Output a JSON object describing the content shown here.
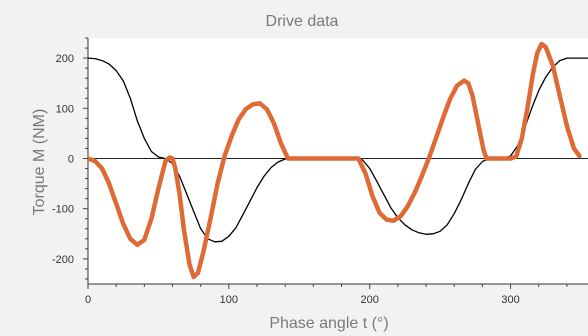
{
  "chart_data": {
    "type": "line",
    "title": "Drive data",
    "xlabel": "Phase angle t (°)",
    "ylabel": "Torque M (NM)",
    "xlim": [
      0,
      355
    ],
    "ylim": [
      -250,
      240
    ],
    "x_ticks": [
      0,
      100,
      200,
      300
    ],
    "y_ticks": [
      200,
      100,
      0,
      -100,
      -200
    ],
    "grid": false,
    "legend": "none",
    "zero_line": true,
    "series": [
      {
        "color": "#000000",
        "line_width": "thin",
        "points": [
          [
            0,
            200
          ],
          [
            5,
            199
          ],
          [
            10,
            195
          ],
          [
            15,
            188
          ],
          [
            20,
            175
          ],
          [
            25,
            155
          ],
          [
            30,
            120
          ],
          [
            35,
            75
          ],
          [
            40,
            40
          ],
          [
            45,
            14
          ],
          [
            50,
            3
          ],
          [
            55,
            0
          ],
          [
            60,
            -10
          ],
          [
            65,
            -35
          ],
          [
            70,
            -70
          ],
          [
            75,
            -105
          ],
          [
            80,
            -140
          ],
          [
            85,
            -160
          ],
          [
            90,
            -166
          ],
          [
            95,
            -165
          ],
          [
            100,
            -155
          ],
          [
            105,
            -138
          ],
          [
            110,
            -112
          ],
          [
            115,
            -85
          ],
          [
            120,
            -58
          ],
          [
            125,
            -35
          ],
          [
            130,
            -18
          ],
          [
            135,
            -7
          ],
          [
            140,
            -1
          ],
          [
            145,
            0
          ],
          [
            190,
            0
          ],
          [
            195,
            -3
          ],
          [
            200,
            -20
          ],
          [
            205,
            -45
          ],
          [
            210,
            -72
          ],
          [
            215,
            -98
          ],
          [
            220,
            -118
          ],
          [
            225,
            -132
          ],
          [
            230,
            -142
          ],
          [
            235,
            -148
          ],
          [
            240,
            -151
          ],
          [
            245,
            -150
          ],
          [
            250,
            -145
          ],
          [
            255,
            -132
          ],
          [
            260,
            -110
          ],
          [
            265,
            -82
          ],
          [
            270,
            -50
          ],
          [
            275,
            -22
          ],
          [
            280,
            -6
          ],
          [
            285,
            0
          ],
          [
            295,
            0
          ],
          [
            300,
            5
          ],
          [
            305,
            25
          ],
          [
            310,
            60
          ],
          [
            315,
            100
          ],
          [
            320,
            135
          ],
          [
            325,
            162
          ],
          [
            330,
            182
          ],
          [
            335,
            195
          ],
          [
            340,
            200
          ],
          [
            355,
            200
          ]
        ]
      },
      {
        "color": "#e06a35",
        "line_width": "thick",
        "points": [
          [
            0,
            0
          ],
          [
            5,
            -5
          ],
          [
            10,
            -20
          ],
          [
            15,
            -50
          ],
          [
            20,
            -90
          ],
          [
            25,
            -130
          ],
          [
            30,
            -160
          ],
          [
            35,
            -172
          ],
          [
            40,
            -162
          ],
          [
            45,
            -120
          ],
          [
            50,
            -60
          ],
          [
            55,
            -5
          ],
          [
            58,
            2
          ],
          [
            60,
            0
          ],
          [
            62,
            -20
          ],
          [
            65,
            -70
          ],
          [
            68,
            -140
          ],
          [
            72,
            -210
          ],
          [
            75,
            -236
          ],
          [
            78,
            -228
          ],
          [
            82,
            -185
          ],
          [
            87,
            -120
          ],
          [
            92,
            -50
          ],
          [
            97,
            5
          ],
          [
            102,
            45
          ],
          [
            107,
            78
          ],
          [
            112,
            98
          ],
          [
            117,
            108
          ],
          [
            122,
            110
          ],
          [
            127,
            98
          ],
          [
            132,
            70
          ],
          [
            137,
            30
          ],
          [
            142,
            0
          ],
          [
            192,
            0
          ],
          [
            197,
            -30
          ],
          [
            202,
            -75
          ],
          [
            207,
            -108
          ],
          [
            212,
            -122
          ],
          [
            217,
            -124
          ],
          [
            222,
            -115
          ],
          [
            227,
            -95
          ],
          [
            232,
            -68
          ],
          [
            237,
            -35
          ],
          [
            242,
            0
          ],
          [
            247,
            40
          ],
          [
            252,
            80
          ],
          [
            257,
            118
          ],
          [
            262,
            145
          ],
          [
            267,
            155
          ],
          [
            270,
            150
          ],
          [
            273,
            125
          ],
          [
            277,
            70
          ],
          [
            281,
            15
          ],
          [
            283,
            0
          ],
          [
            300,
            0
          ],
          [
            304,
            4
          ],
          [
            308,
            40
          ],
          [
            312,
            100
          ],
          [
            316,
            170
          ],
          [
            319,
            210
          ],
          [
            322,
            228
          ],
          [
            325,
            222
          ],
          [
            330,
            185
          ],
          [
            335,
            125
          ],
          [
            340,
            65
          ],
          [
            345,
            20
          ],
          [
            349,
            5
          ]
        ]
      }
    ]
  }
}
